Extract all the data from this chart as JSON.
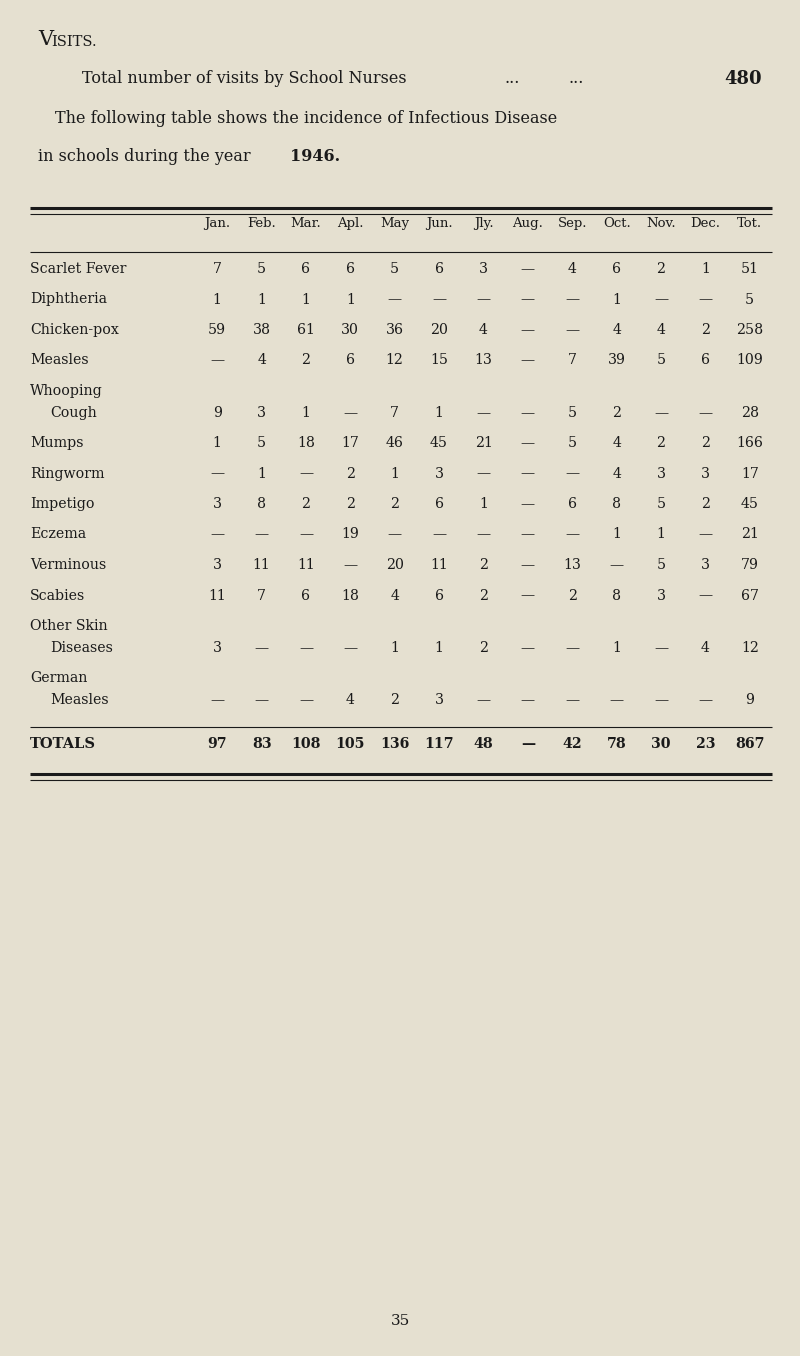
{
  "title_V": "V",
  "title_rest": "ISITS.",
  "line1_text": "Total number of visits by School Nurses",
  "line1_dots1": "...",
  "line1_dots2": "...",
  "line1_value": "480",
  "line2a": "The following table shows the incidence of Infectious Disease",
  "line2b": "in schools during the year ",
  "line2b_bold": "1946.",
  "col_headers": [
    "Jan.",
    "Feb.",
    "Mar.",
    "Apl.",
    "May",
    "Jun.",
    "Jly.",
    "Aug.",
    "Sep.",
    "Oct.",
    "Nov.",
    "Dec.",
    "Tot."
  ],
  "rows": [
    {
      "label": "Scarlet Fever",
      "label2": null,
      "values": [
        "7",
        "5",
        "6",
        "6",
        "5",
        "6",
        "3",
        "—",
        "4",
        "6",
        "2",
        "1",
        "51"
      ]
    },
    {
      "label": "Diphtheria",
      "label2": null,
      "values": [
        "1",
        "1",
        "1",
        "1",
        "—",
        "—",
        "—",
        "—",
        "—",
        "1",
        "—",
        "—",
        "5"
      ]
    },
    {
      "label": "Chicken-pox",
      "label2": null,
      "values": [
        "59",
        "38",
        "61",
        "30",
        "36",
        "20",
        "4",
        "—",
        "—",
        "4",
        "4",
        "2",
        "258"
      ]
    },
    {
      "label": "Measles",
      "label2": null,
      "values": [
        "—",
        "4",
        "2",
        "6",
        "12",
        "15",
        "13",
        "—",
        "7",
        "39",
        "5",
        "6",
        "109"
      ]
    },
    {
      "label": "Whooping",
      "label2": "Cough",
      "values": [
        "9",
        "3",
        "1",
        "—",
        "7",
        "1",
        "—",
        "—",
        "5",
        "2",
        "—",
        "—",
        "28"
      ]
    },
    {
      "label": "Mumps",
      "label2": null,
      "values": [
        "1",
        "5",
        "18",
        "17",
        "46",
        "45",
        "21",
        "—",
        "5",
        "4",
        "2",
        "2",
        "166"
      ]
    },
    {
      "label": "Ringworm",
      "label2": null,
      "values": [
        "—",
        "1",
        "—",
        "2",
        "1",
        "3",
        "—",
        "—",
        "—",
        "4",
        "3",
        "3",
        "17"
      ]
    },
    {
      "label": "Impetigo",
      "label2": null,
      "values": [
        "3",
        "8",
        "2",
        "2",
        "2",
        "6",
        "1",
        "—",
        "6",
        "8",
        "5",
        "2",
        "45"
      ]
    },
    {
      "label": "Eczema",
      "label2": null,
      "values": [
        "—",
        "—",
        "—",
        "19",
        "—",
        "—",
        "—",
        "—",
        "—",
        "1",
        "1",
        "—",
        "21"
      ]
    },
    {
      "label": "Verminous",
      "label2": null,
      "values": [
        "3",
        "11",
        "11",
        "—",
        "20",
        "11",
        "2",
        "—",
        "13",
        "—",
        "5",
        "3",
        "79"
      ]
    },
    {
      "label": "Scabies",
      "label2": null,
      "values": [
        "11",
        "7",
        "6",
        "18",
        "4",
        "6",
        "2",
        "—",
        "2",
        "8",
        "3",
        "—",
        "67"
      ]
    },
    {
      "label": "Other Skin",
      "label2": "Diseases",
      "values": [
        "3",
        "—",
        "—",
        "—",
        "1",
        "1",
        "2",
        "—",
        "—",
        "1",
        "—",
        "4",
        "12"
      ]
    },
    {
      "label": "German",
      "label2": "Measles",
      "values": [
        "—",
        "—",
        "—",
        "4",
        "2",
        "3",
        "—",
        "—",
        "—",
        "—",
        "—",
        "—",
        "9"
      ]
    }
  ],
  "totals_label": "TOTALS",
  "totals_values": [
    "97",
    "83",
    "108",
    "105",
    "136",
    "117",
    "48",
    "—",
    "42",
    "78",
    "30",
    "23",
    "867"
  ],
  "page_number": "35",
  "bg_color": "#e5e0d0",
  "text_color": "#1a1a1a"
}
